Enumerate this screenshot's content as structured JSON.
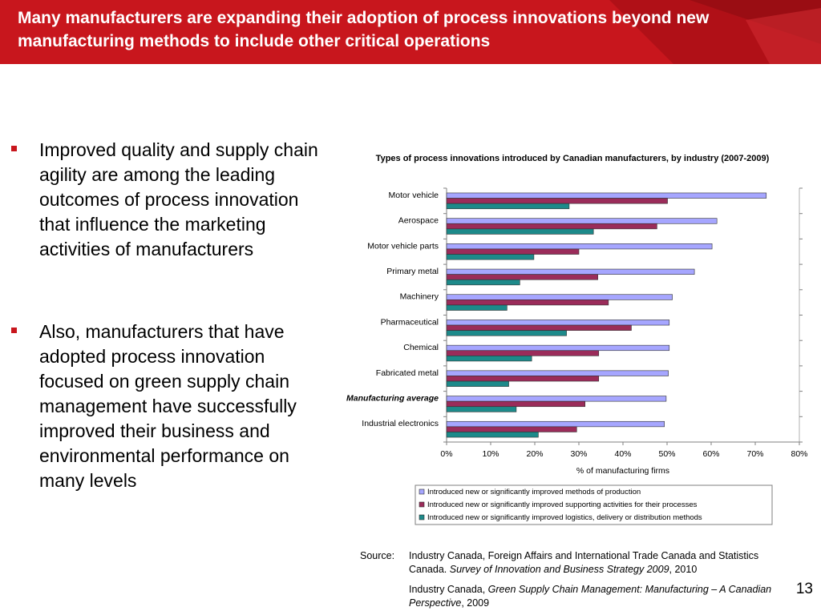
{
  "slide": {
    "title": "Many manufacturers are expanding their adoption of process innovations beyond new manufacturing methods to include other critical operations",
    "page_number": "13"
  },
  "bullets": [
    "Improved quality and supply chain agility are among the leading outcomes of process innovation that influence the marketing activities of manufacturers",
    "Also, manufacturers that have adopted process innovation focused on green supply chain management have successfully improved their business and environmental performance on many levels"
  ],
  "source": {
    "label": "Source:",
    "entry1": {
      "text": "Industry Canada, Foreign Affairs and International Trade Canada and Statistics Canada. ",
      "italic": "Survey of Innovation and Business Strategy 2009",
      "suffix": ", 2010"
    },
    "entry2": {
      "text": "Industry Canada, ",
      "italic": "Green Supply Chain Management: Manufacturing  – A Canadian Perspective",
      "suffix": ", 2009"
    }
  },
  "colors": {
    "header_red": "#c8161d",
    "series": [
      "#a6a6ff",
      "#9b2c5a",
      "#1d8a8a"
    ]
  },
  "chart_data": {
    "type": "bar",
    "orientation": "horizontal",
    "title": "Types of process innovations introduced by Canadian manufacturers, by industry (2007-2009)",
    "xlabel": "% of manufacturing firms",
    "xlim": [
      0,
      80
    ],
    "xticks": [
      "0%",
      "10%",
      "20%",
      "30%",
      "40%",
      "50%",
      "60%",
      "70%",
      "80%"
    ],
    "grid": false,
    "legend": "bottom",
    "highlight_category": "Manufacturing average",
    "categories": [
      "Motor vehicle",
      "Aerospace",
      "Motor vehicle parts",
      "Primary metal",
      "Machinery",
      "Pharmaceutical",
      "Chemical",
      "Fabricated metal",
      "Manufacturing average",
      "Industrial electronics"
    ],
    "series": [
      {
        "name": "Introduced new or significantly improved methods of production",
        "values": [
          72.5,
          61.3,
          60.2,
          56.2,
          51.2,
          50.5,
          50.5,
          50.3,
          49.8,
          49.4
        ]
      },
      {
        "name": "Introduced new or significantly improved supporting activities for their processes",
        "values": [
          50.1,
          47.7,
          30.0,
          34.3,
          36.7,
          41.9,
          34.5,
          34.5,
          31.4,
          29.5
        ]
      },
      {
        "name": "Introduced new or significantly improved logistics, delivery or distribution methods",
        "values": [
          27.8,
          33.3,
          19.8,
          16.6,
          13.7,
          27.2,
          19.3,
          14.1,
          15.8,
          20.8
        ]
      }
    ]
  }
}
